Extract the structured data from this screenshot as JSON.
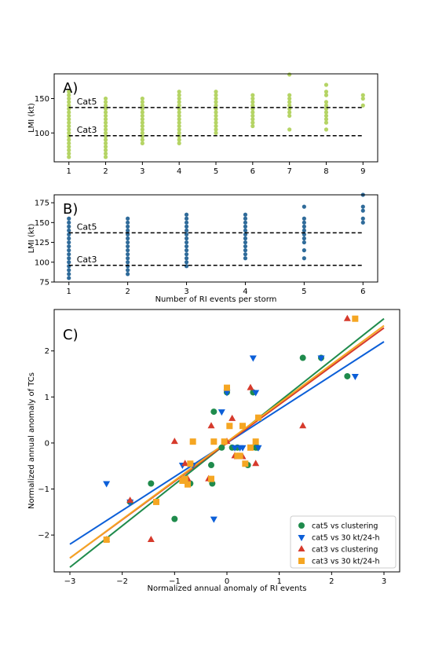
{
  "chart_data": [
    {
      "panel": "A",
      "type": "scatter",
      "panel_label": "A)",
      "ylabel": "LMI (kt)",
      "xlabel": "",
      "xlim": [
        0.6,
        9.4
      ],
      "ylim": [
        58,
        186
      ],
      "xticks": [
        "1",
        "2",
        "3",
        "4",
        "5",
        "6",
        "7",
        "8",
        "9"
      ],
      "yticks": [
        "100",
        "150"
      ],
      "color": "#b5d465",
      "reference_lines": [
        {
          "name": "Cat5",
          "y": 137
        },
        {
          "name": "Cat3",
          "y": 96
        }
      ],
      "points": {
        "1": [
          65,
          70,
          75,
          80,
          85,
          90,
          95,
          100,
          105,
          110,
          115,
          120,
          125,
          130,
          135,
          140,
          145,
          150,
          155,
          160
        ],
        "2": [
          65,
          70,
          75,
          80,
          85,
          90,
          95,
          100,
          105,
          110,
          115,
          120,
          125,
          130,
          135,
          140,
          145,
          150
        ],
        "3": [
          85,
          90,
          95,
          100,
          105,
          110,
          115,
          120,
          125,
          130,
          135,
          140,
          145,
          150
        ],
        "4": [
          85,
          90,
          95,
          100,
          105,
          110,
          115,
          120,
          125,
          130,
          135,
          140,
          145,
          150,
          155,
          160
        ],
        "5": [
          100,
          105,
          110,
          115,
          120,
          125,
          130,
          135,
          140,
          145,
          150,
          155,
          160
        ],
        "6": [
          110,
          115,
          120,
          125,
          130,
          135,
          140,
          145,
          150,
          155
        ],
        "7": [
          105,
          125,
          130,
          135,
          140,
          145,
          150,
          155,
          185
        ],
        "8": [
          105,
          115,
          120,
          125,
          130,
          135,
          140,
          145,
          155,
          160,
          170
        ],
        "9": [
          140,
          150,
          155
        ]
      }
    },
    {
      "panel": "B",
      "type": "scatter",
      "panel_label": "B)",
      "ylabel": "LMI (kt)",
      "xlabel": "Number of RI events per storm",
      "xlim": [
        0.75,
        6.25
      ],
      "ylim": [
        75,
        185
      ],
      "xticks": [
        "1",
        "2",
        "3",
        "4",
        "5",
        "6"
      ],
      "yticks": [
        "75",
        "100",
        "125",
        "150",
        "175"
      ],
      "color": "#2f6b9a",
      "reference_lines": [
        {
          "name": "Cat5",
          "y": 137
        },
        {
          "name": "Cat3",
          "y": 96
        }
      ],
      "points": {
        "1": [
          80,
          85,
          90,
          95,
          100,
          105,
          110,
          115,
          120,
          125,
          130,
          135,
          140,
          145,
          150,
          155
        ],
        "2": [
          85,
          90,
          95,
          100,
          105,
          110,
          115,
          120,
          125,
          130,
          135,
          140,
          145,
          150,
          155
        ],
        "3": [
          95,
          100,
          105,
          110,
          115,
          120,
          125,
          130,
          135,
          140,
          145,
          150,
          155,
          160
        ],
        "4": [
          105,
          110,
          115,
          120,
          125,
          130,
          135,
          140,
          145,
          150,
          155,
          160
        ],
        "5": [
          105,
          115,
          125,
          130,
          135,
          140,
          145,
          150,
          155,
          170
        ],
        "6": [
          150,
          155,
          165,
          170,
          185
        ]
      }
    },
    {
      "panel": "C",
      "type": "scatter",
      "panel_label": "C)",
      "xlabel": "Normalized annual anomaly of RI events",
      "ylabel": "Normalized annual anomaly of TCs",
      "xlim": [
        -3.3,
        3.3
      ],
      "ylim": [
        -2.8,
        2.9
      ],
      "xticks": [
        "−3",
        "−2",
        "−1",
        "0",
        "1",
        "2",
        "3"
      ],
      "yticks": [
        "−2",
        "−1",
        "0",
        "1",
        "2"
      ],
      "legend_position": "bottom-right",
      "series": [
        {
          "name": "cat5 vs clustering",
          "color": "#1f8b4c",
          "marker": "circle",
          "fit_line": {
            "x": [
              -3,
              3
            ],
            "y": [
              -2.7,
              2.7
            ]
          },
          "x": [
            -1.85,
            -1.45,
            -1.0,
            -0.8,
            -0.75,
            -0.7,
            -0.3,
            -0.25,
            -0.28,
            -0.1,
            0.0,
            0.1,
            0.2,
            0.4,
            0.5,
            0.55,
            0.58,
            1.45,
            1.8,
            2.3
          ],
          "y": [
            -1.28,
            -0.88,
            -1.65,
            -0.82,
            -0.88,
            -0.88,
            -0.48,
            0.68,
            -0.88,
            -0.1,
            1.1,
            -0.1,
            -0.1,
            -0.48,
            1.1,
            -0.1,
            -0.1,
            1.85,
            1.85,
            1.45
          ]
        },
        {
          "name": "cat5 vs 30 kt/24-h",
          "color": "#0c5fd8",
          "marker": "triangle-down",
          "fit_line": {
            "x": [
              -3,
              3
            ],
            "y": [
              -2.2,
              2.2
            ]
          },
          "x": [
            -2.3,
            -1.85,
            -0.85,
            -0.65,
            -0.75,
            -0.25,
            -0.1,
            0.0,
            0.15,
            0.25,
            0.3,
            0.5,
            0.55,
            0.6,
            1.8,
            2.45
          ],
          "y": [
            -0.88,
            -1.28,
            -0.48,
            -0.48,
            -0.88,
            -1.65,
            0.68,
            1.1,
            -0.1,
            -0.1,
            -0.1,
            1.85,
            1.1,
            -0.1,
            1.85,
            1.45
          ]
        },
        {
          "name": "cat3 vs clustering",
          "color": "#d63a2c",
          "marker": "triangle-up",
          "fit_line": {
            "x": [
              -3,
              3
            ],
            "y": [
              -2.5,
              2.5
            ]
          },
          "x": [
            -2.3,
            -1.85,
            -1.45,
            -1.0,
            -0.75,
            -0.8,
            -0.35,
            -0.3,
            0.0,
            0.1,
            0.15,
            0.2,
            0.3,
            0.45,
            0.55,
            1.45,
            2.3
          ],
          "y": [
            -2.1,
            -1.25,
            -2.1,
            0.03,
            -0.78,
            -0.45,
            -0.78,
            0.37,
            0.03,
            0.53,
            -0.28,
            -0.3,
            -0.3,
            1.2,
            -0.45,
            0.37,
            2.7
          ]
        },
        {
          "name": "cat3 vs 30 kt/24-h",
          "color": "#f5a623",
          "marker": "square",
          "fit_line": {
            "x": [
              -3,
              3
            ],
            "y": [
              -2.5,
              2.55
            ]
          },
          "x": [
            -2.3,
            -1.35,
            -0.8,
            -0.7,
            -0.85,
            -0.75,
            -0.65,
            -0.3,
            -0.25,
            -0.05,
            0.0,
            0.05,
            0.2,
            0.25,
            0.3,
            0.35,
            0.45,
            0.55,
            0.6,
            2.45
          ],
          "y": [
            -2.1,
            -1.28,
            -0.78,
            -0.45,
            -0.82,
            -0.9,
            0.03,
            -0.78,
            0.03,
            0.03,
            1.2,
            0.37,
            -0.28,
            -0.28,
            0.37,
            -0.45,
            -0.1,
            0.03,
            0.55,
            2.7
          ]
        }
      ]
    }
  ]
}
